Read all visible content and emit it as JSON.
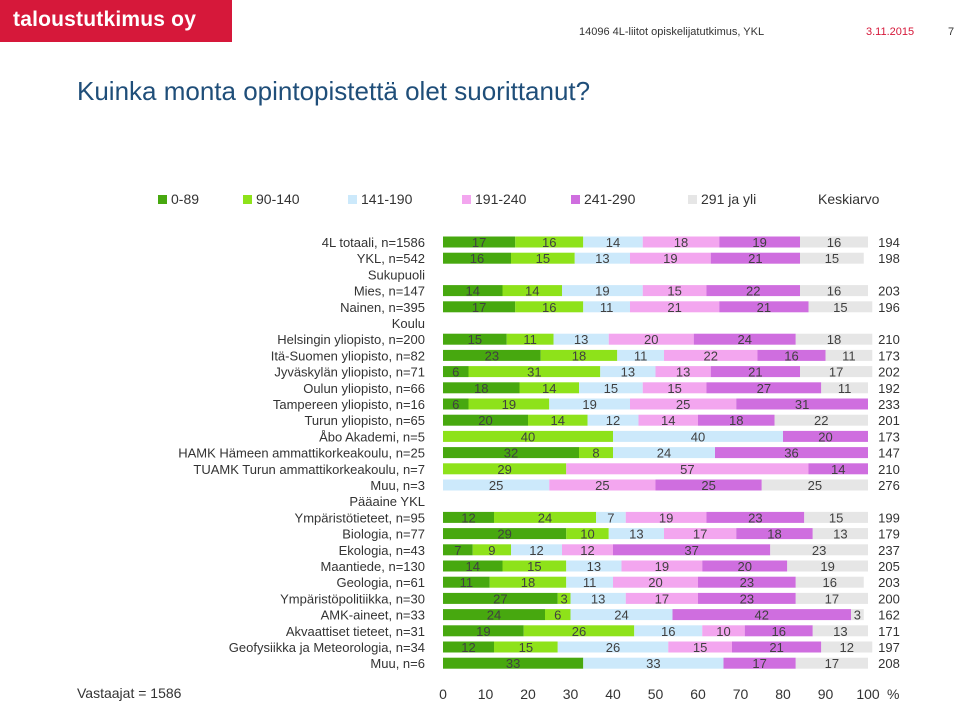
{
  "header": {
    "logo_text": "taloustutkimus oy",
    "survey_info": "14096 4L-liitot opiskelijatutkimus, YKL",
    "date": "3.11.2015",
    "page_number": "7"
  },
  "slide": {
    "title": "Kuinka monta opintopistettä olet suorittanut?",
    "respondents": "Vastaajat = 1586"
  },
  "chart_data": {
    "type": "bar",
    "orientation": "horizontal",
    "stacked": "percent",
    "xlim": [
      0,
      100
    ],
    "x_ticks": [
      "0",
      "10",
      "20",
      "30",
      "40",
      "50",
      "60",
      "70",
      "80",
      "90",
      "100"
    ],
    "x_unit": "%",
    "legend_placement": "top",
    "series_names": [
      "0-89",
      "90-140",
      "141-190",
      "191-240",
      "241-290",
      "291 ja yli"
    ],
    "series_colors": [
      "#47a80f",
      "#8ee21a",
      "#cce9fb",
      "#f3a6ef",
      "#cf6edf",
      "#e6e6e6"
    ],
    "mean_label": "Keskiarvo",
    "rows": [
      {
        "label": "4L totaali, n=1586",
        "values": [
          17,
          16,
          14,
          18,
          19,
          16
        ],
        "mean": "194"
      },
      {
        "label": "YKL, n=542",
        "values": [
          16,
          15,
          13,
          19,
          21,
          15
        ],
        "mean": "198"
      },
      {
        "label": "Sukupuoli",
        "header": true
      },
      {
        "label": "Mies, n=147",
        "values": [
          14,
          14,
          19,
          15,
          22,
          16
        ],
        "mean": "203"
      },
      {
        "label": "Nainen, n=395",
        "values": [
          17,
          16,
          11,
          21,
          21,
          15
        ],
        "mean": "196"
      },
      {
        "label": "Koulu",
        "header": true
      },
      {
        "label": "Helsingin yliopisto, n=200",
        "values": [
          15,
          11,
          13,
          20,
          24,
          18
        ],
        "mean": "210"
      },
      {
        "label": "Itä-Suomen yliopisto, n=82",
        "values": [
          23,
          18,
          11,
          22,
          16,
          11
        ],
        "mean": "173"
      },
      {
        "label": "Jyväskylän yliopisto, n=71",
        "values": [
          6,
          31,
          13,
          13,
          21,
          17
        ],
        "mean": "202"
      },
      {
        "label": "Oulun yliopisto, n=66",
        "values": [
          18,
          14,
          15,
          15,
          27,
          11
        ],
        "mean": "192"
      },
      {
        "label": "Tampereen yliopisto, n=16",
        "values": [
          6,
          19,
          19,
          25,
          31,
          0
        ],
        "mean": "233"
      },
      {
        "label": "Turun yliopisto, n=65",
        "values": [
          20,
          14,
          12,
          14,
          18,
          22
        ],
        "mean": "201"
      },
      {
        "label": "Åbo Akademi, n=5",
        "values": [
          0,
          40,
          40,
          0,
          20,
          0
        ],
        "mean": "173"
      },
      {
        "label": "HAMK Hämeen ammattikorkeakoulu, n=25",
        "values": [
          32,
          8,
          24,
          0,
          36,
          0
        ],
        "mean": "147"
      },
      {
        "label": "TUAMK Turun ammattikorkeakoulu, n=7",
        "values": [
          0,
          29,
          0,
          57,
          14,
          0
        ],
        "mean": "210"
      },
      {
        "label": "Muu, n=3",
        "values": [
          0,
          0,
          25,
          25,
          25,
          25
        ],
        "mean": "276"
      },
      {
        "label": "Pääaine YKL",
        "header": true
      },
      {
        "label": "Ympäristötieteet, n=95",
        "values": [
          12,
          24,
          7,
          19,
          23,
          15
        ],
        "mean": "199"
      },
      {
        "label": "Biologia, n=77",
        "values": [
          29,
          10,
          13,
          17,
          18,
          13
        ],
        "mean": "179"
      },
      {
        "label": "Ekologia, n=43",
        "values": [
          7,
          9,
          12,
          12,
          37,
          23
        ],
        "mean": "237"
      },
      {
        "label": "Maantiede, n=130",
        "values": [
          14,
          15,
          13,
          19,
          20,
          19
        ],
        "mean": "205"
      },
      {
        "label": "Geologia, n=61",
        "values": [
          11,
          18,
          11,
          20,
          23,
          16
        ],
        "mean": "203"
      },
      {
        "label": "Ympäristöpolitiikka, n=30",
        "values": [
          27,
          3,
          13,
          17,
          23,
          17
        ],
        "mean": "200"
      },
      {
        "label": "AMK-aineet, n=33",
        "values": [
          24,
          6,
          24,
          0,
          42,
          3
        ],
        "mean": "162"
      },
      {
        "label": "Akvaattiset tieteet, n=31",
        "values": [
          19,
          26,
          16,
          10,
          16,
          13
        ],
        "mean": "171"
      },
      {
        "label": "Geofysiikka ja Meteorologia, n=34",
        "values": [
          12,
          15,
          26,
          15,
          21,
          12
        ],
        "mean": "197"
      },
      {
        "label": "Muu, n=6",
        "values": [
          33,
          0,
          33,
          0,
          17,
          17
        ],
        "mean": "208"
      }
    ]
  }
}
